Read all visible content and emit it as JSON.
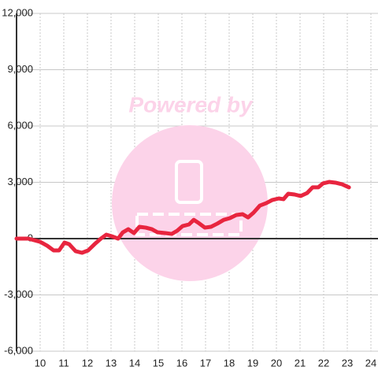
{
  "watermark": "Powered by",
  "chart_data": {
    "type": "line",
    "grid": true,
    "xlim": [
      9,
      24.3
    ],
    "ylim": [
      -6000,
      12000
    ],
    "xticks": [
      10,
      11,
      12,
      13,
      14,
      15,
      16,
      17,
      18,
      19,
      20,
      21,
      22,
      23,
      24
    ],
    "yticks": [
      {
        "value": -6000,
        "label": "-6,000"
      },
      {
        "value": -3000,
        "label": "-3,000"
      },
      0,
      {
        "value": 3000,
        "label": "3,000"
      },
      {
        "value": 6000,
        "label": "6,000"
      },
      {
        "value": 9000,
        "label": "9,000"
      },
      {
        "value": 12000,
        "label": "12,000"
      }
    ],
    "series": [
      {
        "color": "#e8253f",
        "x": [
          9.0,
          9.5,
          10.0,
          10.3,
          10.57,
          10.8,
          11.03,
          11.23,
          11.5,
          11.77,
          12.03,
          12.3,
          12.57,
          12.8,
          13.03,
          13.3,
          13.5,
          13.73,
          13.97,
          14.2,
          14.47,
          14.73,
          14.97,
          15.3,
          15.57,
          15.8,
          16.03,
          16.3,
          16.5,
          16.7,
          16.97,
          17.23,
          17.5,
          17.77,
          18.03,
          18.3,
          18.57,
          18.8,
          19.03,
          19.3,
          19.57,
          19.83,
          20.1,
          20.3,
          20.5,
          20.77,
          21.03,
          21.3,
          21.53,
          21.77,
          21.97,
          22.23,
          22.5,
          22.77,
          23.07
        ],
        "values": [
          0,
          0,
          -170,
          -380,
          -630,
          -630,
          -210,
          -300,
          -670,
          -755,
          -630,
          -300,
          0,
          210,
          125,
          0,
          335,
          500,
          295,
          630,
          585,
          500,
          335,
          295,
          250,
          420,
          670,
          755,
          1000,
          840,
          585,
          630,
          800,
          1000,
          1090,
          1260,
          1300,
          1130,
          1380,
          1760,
          1890,
          2060,
          2140,
          2100,
          2390,
          2350,
          2270,
          2430,
          2730,
          2730,
          2940,
          3020,
          2980,
          2900,
          2730
        ]
      }
    ]
  }
}
